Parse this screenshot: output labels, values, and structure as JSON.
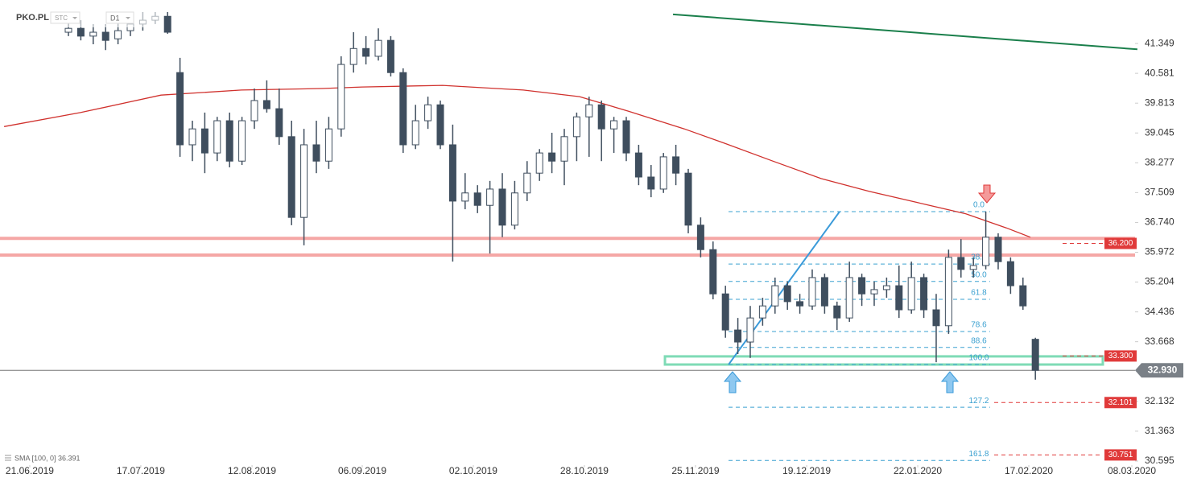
{
  "header": {
    "symbol": "PKO.PL",
    "mode": "STC",
    "interval": "D1"
  },
  "chart_data": {
    "type": "candlestick",
    "open": [
      41.64,
      41.74,
      41.54,
      41.64,
      41.47,
      41.68,
      41.85,
      41.95,
      42.05,
      40.6,
      38.74,
      39.15,
      38.53,
      39.36,
      38.32,
      39.36,
      39.88,
      39.67,
      38.95,
      36.87,
      38.74,
      38.32,
      39.15,
      40.81,
      41.22,
      41.02,
      41.43,
      40.6,
      38.74,
      39.36,
      39.77,
      38.74,
      37.29,
      37.5,
      37.18,
      37.6,
      36.67,
      37.5,
      38.01,
      38.53,
      38.32,
      38.95,
      39.46,
      39.77,
      39.15,
      39.36,
      38.53,
      37.91,
      37.6,
      38.43,
      38.01,
      36.67,
      36.04,
      34.9,
      33.97,
      33.66,
      34.28,
      34.59,
      35.11,
      34.7,
      34.59,
      35.32,
      34.59,
      34.28,
      35.32,
      34.9,
      35.01,
      35.11,
      34.49,
      35.32,
      34.49,
      34.08,
      35.84,
      35.53,
      35.63,
      36.36,
      35.73,
      35.11,
      33.73
    ],
    "high": [
      42.05,
      41.95,
      41.85,
      41.85,
      41.95,
      42.05,
      42.16,
      42.16,
      42.16,
      40.98,
      39.36,
      39.57,
      39.46,
      39.57,
      39.46,
      40.19,
      40.4,
      40.19,
      39.36,
      39.15,
      39.36,
      39.46,
      41.02,
      41.64,
      41.54,
      41.74,
      41.54,
      40.71,
      39.77,
      39.98,
      39.88,
      39.26,
      38.01,
      37.7,
      37.81,
      38.01,
      37.81,
      38.32,
      38.63,
      39.05,
      39.15,
      39.57,
      39.98,
      39.88,
      39.46,
      39.46,
      38.74,
      38.22,
      38.53,
      38.74,
      38.12,
      36.87,
      36.25,
      35.11,
      34.28,
      34.59,
      34.8,
      35.32,
      35.22,
      34.9,
      35.53,
      35.42,
      34.7,
      35.73,
      35.42,
      35.22,
      35.32,
      35.63,
      35.73,
      35.42,
      34.9,
      36.04,
      36.31,
      35.84,
      37.02,
      36.46,
      35.84,
      35.32,
      33.77
    ],
    "low": [
      41.54,
      41.43,
      41.33,
      41.18,
      41.33,
      41.54,
      41.68,
      41.85,
      41.6,
      38.43,
      38.32,
      38.01,
      38.32,
      38.16,
      38.22,
      39.15,
      39.57,
      38.74,
      36.67,
      36.15,
      38.01,
      38.12,
      38.95,
      40.6,
      40.81,
      40.91,
      40.5,
      38.53,
      38.63,
      39.15,
      38.63,
      35.73,
      37.08,
      36.98,
      35.94,
      36.36,
      36.56,
      37.29,
      37.81,
      38.01,
      37.7,
      38.32,
      38.43,
      38.32,
      38.53,
      38.32,
      37.7,
      37.39,
      37.5,
      37.7,
      36.46,
      35.84,
      34.76,
      33.77,
      33.35,
      33.25,
      34.08,
      34.39,
      34.49,
      34.39,
      34.49,
      34.39,
      33.97,
      34.18,
      34.59,
      34.59,
      34.8,
      34.28,
      34.39,
      34.28,
      33.14,
      33.87,
      35.32,
      35.32,
      35.53,
      35.53,
      34.9,
      34.49,
      32.69
    ],
    "close": [
      41.74,
      41.54,
      41.64,
      41.43,
      41.68,
      41.85,
      41.95,
      42.05,
      41.64,
      38.74,
      39.15,
      38.53,
      39.36,
      38.32,
      39.36,
      39.88,
      39.67,
      38.95,
      36.87,
      38.74,
      38.32,
      39.15,
      40.81,
      41.22,
      41.02,
      41.43,
      40.6,
      38.74,
      39.36,
      39.77,
      38.74,
      37.29,
      37.5,
      37.18,
      37.6,
      36.67,
      37.5,
      38.01,
      38.53,
      38.32,
      38.95,
      39.46,
      39.77,
      39.15,
      39.36,
      38.53,
      37.91,
      37.6,
      38.43,
      38.01,
      36.67,
      36.04,
      34.9,
      33.97,
      33.66,
      34.28,
      34.59,
      35.11,
      34.7,
      34.59,
      35.32,
      34.59,
      34.28,
      35.32,
      34.9,
      35.01,
      35.11,
      34.49,
      35.32,
      34.49,
      34.08,
      35.84,
      35.53,
      35.63,
      36.36,
      35.73,
      35.11,
      34.59,
      32.93
    ],
    "up_color": "#ffffff",
    "down_color": "#3f4e5e",
    "sma": {
      "name": "SMA [100, 0] 36.391",
      "color": "#d0312d",
      "x": [
        -5.19,
        0.97,
        7.47,
        13.96,
        20.45,
        23.7,
        30.19,
        36.69,
        41.23,
        45.13,
        49.68,
        52.92,
        56.82,
        60.71,
        64.61,
        68.51,
        72.4,
        75.65,
        77.6
      ],
      "values": [
        39.21,
        39.57,
        40.02,
        40.15,
        40.19,
        40.23,
        40.27,
        40.15,
        39.98,
        39.61,
        39.15,
        38.78,
        38.32,
        37.87,
        37.54,
        37.25,
        36.96,
        36.6,
        36.36
      ]
    },
    "trendlines": [
      {
        "color": "#1a7f4b",
        "x": [
          48.77,
          86.23
        ],
        "values": [
          42.1,
          41.2
        ]
      },
      {
        "color": "#3a9ad9",
        "x": [
          53.25,
          62.21
        ],
        "values": [
          33.08,
          37.02
        ]
      }
    ],
    "horizontal_lines": [
      {
        "value": 36.33,
        "color": "#f5a7a6"
      },
      {
        "value": 35.9,
        "color": "#f5a7a6"
      }
    ],
    "zone": {
      "x": [
        48.12,
        83.44
      ],
      "values": [
        33.29,
        33.08
      ],
      "color": "#7fdbb6"
    },
    "fib": {
      "color": "#3aa0d0",
      "x": [
        53.25,
        74.35
      ],
      "levels": [
        {
          "label": "0.0",
          "value": 37.02
        },
        {
          "label": "38.2",
          "value": 35.67
        },
        {
          "label": "50.0",
          "value": 35.22
        },
        {
          "label": "61.8",
          "value": 34.76
        },
        {
          "label": "78.6",
          "value": 33.93
        },
        {
          "label": "88.6",
          "value": 33.52
        },
        {
          "label": "100.0",
          "value": 33.08
        },
        {
          "label": "127.2",
          "value": 31.98
        },
        {
          "label": "161.8",
          "value": 30.61
        }
      ]
    },
    "price_tags": [
      {
        "value": 36.2,
        "label": "36.200"
      },
      {
        "value": 33.3,
        "label": "33.300"
      },
      {
        "value": 32.101,
        "label": "32.101"
      },
      {
        "value": 30.751,
        "label": "30.751"
      }
    ],
    "tag_color": "#e03a3a",
    "last_price": {
      "value": 32.93,
      "label": "32.930"
    },
    "ylim": [
      30.49,
      42.47
    ],
    "yticks": [
      41.349,
      40.581,
      39.813,
      39.045,
      38.277,
      37.509,
      {
        "value": 36.74,
        "label": "36.740"
      },
      35.972,
      35.204,
      34.436,
      33.668,
      32.132,
      31.363,
      30.595
    ],
    "xlim": [
      -5.52,
      86.04
    ],
    "xticks": [
      {
        "value": -3.12,
        "label": "21.06.2019"
      },
      {
        "value": 5.84,
        "label": "17.07.2019"
      },
      {
        "value": 14.81,
        "label": "12.08.2019"
      },
      {
        "value": 23.7,
        "label": "06.09.2019"
      },
      {
        "value": 32.66,
        "label": "02.10.2019"
      },
      {
        "value": 41.62,
        "label": "28.10.2019"
      },
      {
        "value": 50.58,
        "label": "25.11.2019"
      },
      {
        "value": 59.55,
        "label": "19.12.2019"
      },
      {
        "value": 68.51,
        "label": "22.01.2020"
      },
      {
        "value": 77.47,
        "label": "17.02.2020"
      },
      {
        "value": 85.78,
        "label": "08.03.2020"
      }
    ]
  }
}
